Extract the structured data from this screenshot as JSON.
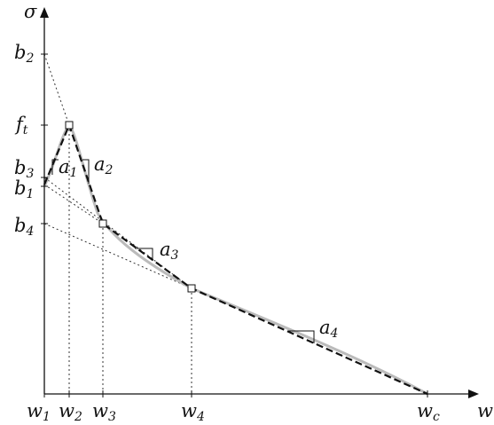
{
  "axes": {
    "y_label": "σ",
    "x_label": "w"
  },
  "y_ticks": [
    {
      "base": "b",
      "sub": "2"
    },
    {
      "base": "f",
      "sub": "t"
    },
    {
      "base": "b",
      "sub": "3"
    },
    {
      "base": "b",
      "sub": "1"
    },
    {
      "base": "b",
      "sub": "4"
    }
  ],
  "x_ticks": [
    {
      "base": "w",
      "sub": "1"
    },
    {
      "base": "w",
      "sub": "2"
    },
    {
      "base": "w",
      "sub": "3"
    },
    {
      "base": "w",
      "sub": "4"
    },
    {
      "base": "w",
      "sub": "c"
    }
  ],
  "slopes": [
    {
      "base": "a",
      "sub": "1"
    },
    {
      "base": "a",
      "sub": "2"
    },
    {
      "base": "a",
      "sub": "3"
    },
    {
      "base": "a",
      "sub": "4"
    }
  ],
  "colors": {
    "axis": "#111111",
    "dashed_curve": "#111111",
    "smooth_curve": "#bbbbbb",
    "guide_lines": "#333333"
  }
}
